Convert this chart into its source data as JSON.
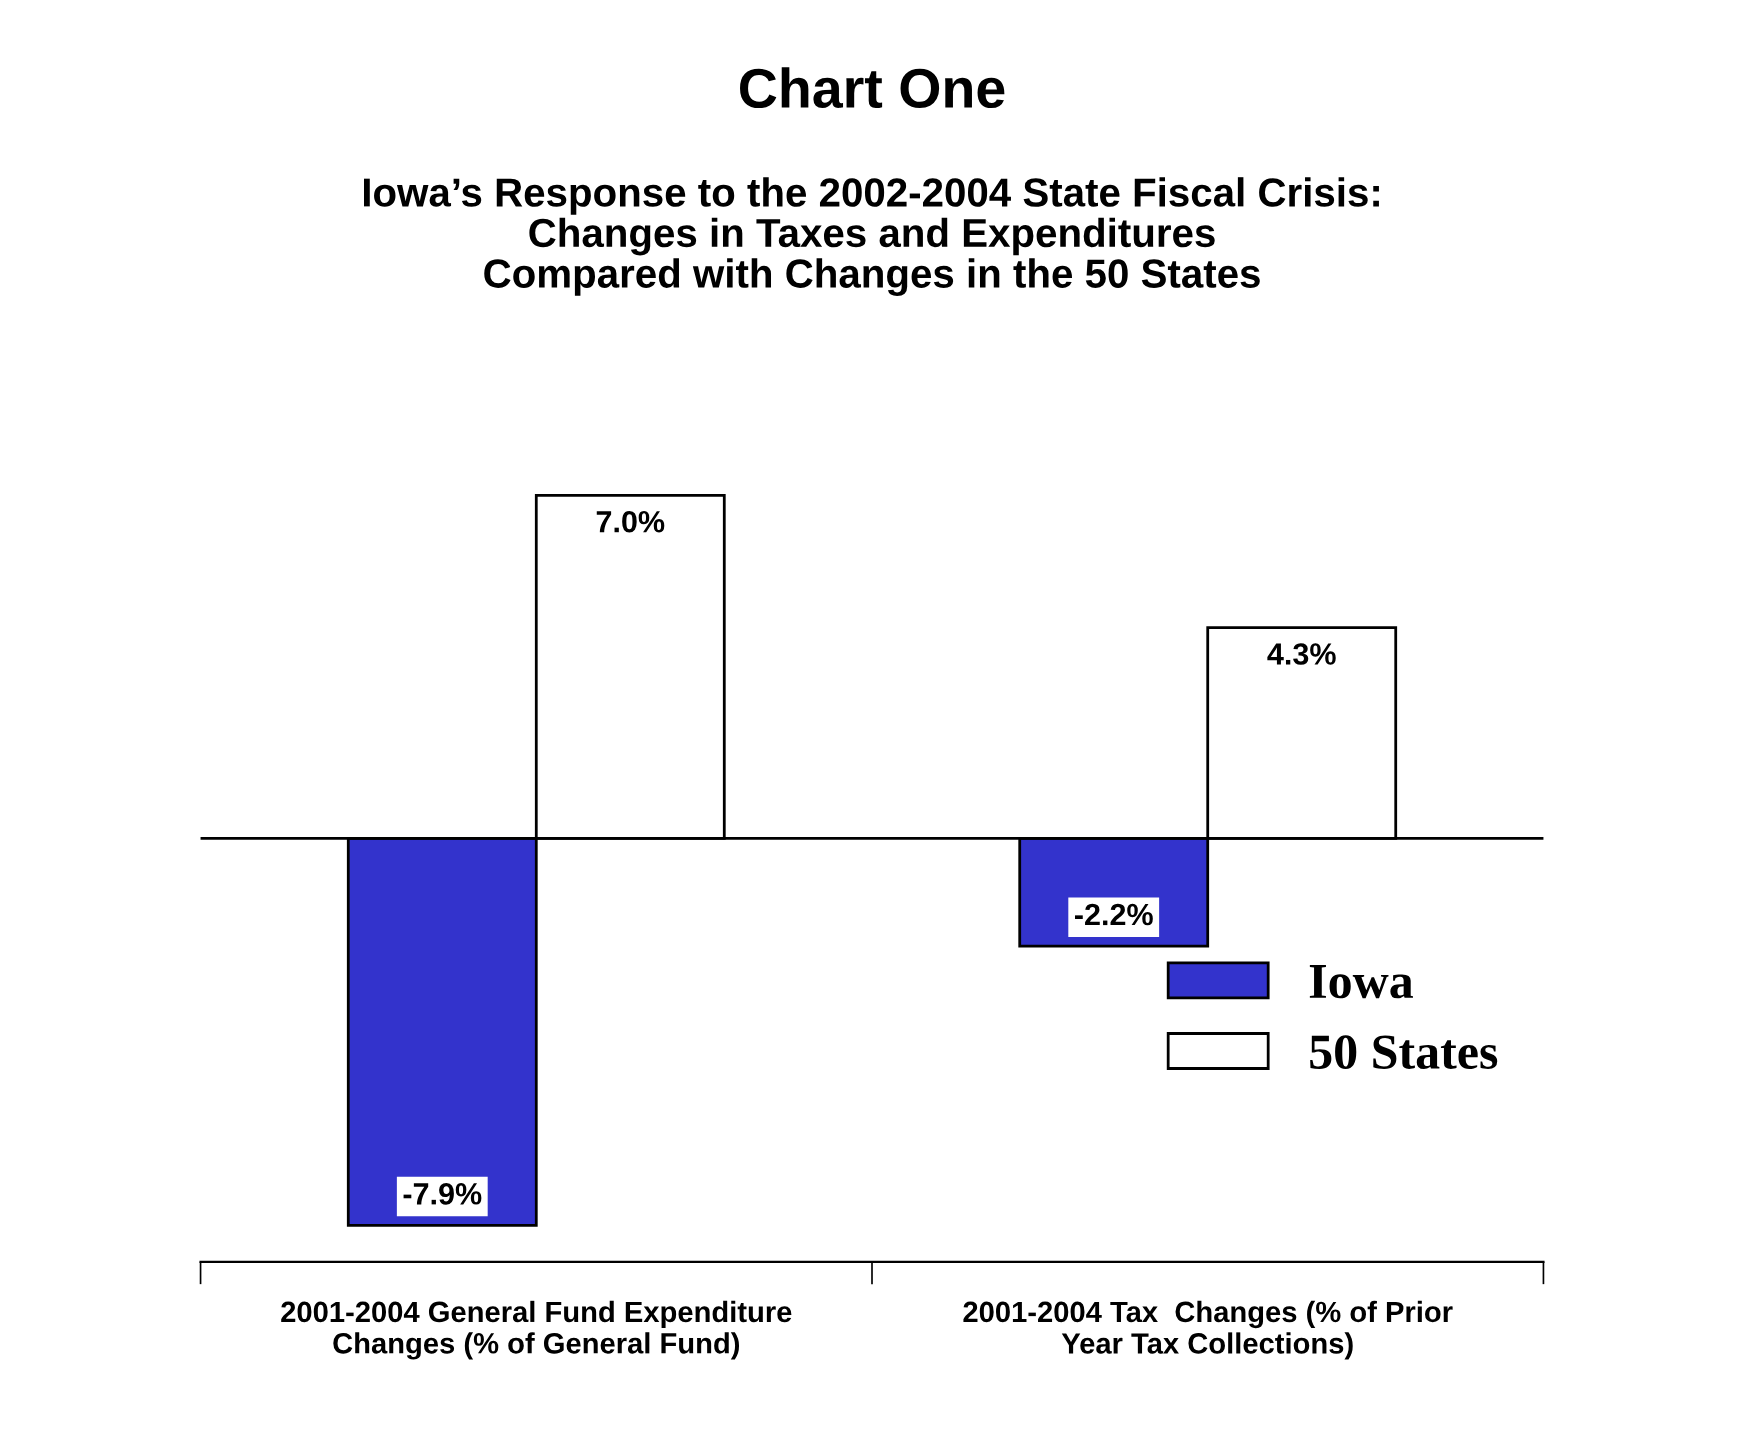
{
  "chart_data": {
    "type": "bar",
    "title": "Chart One",
    "subtitle": "Iowa’s Response to the 2002-2004 State Fiscal Crisis:\nChanges in Taxes and Expenditures\nCompared with Changes in the 50 States",
    "categories": [
      "2001-2004 General Fund Expenditure\nChanges (% of General Fund)",
      "2001-2004 Tax  Changes (% of Prior\nYear Tax Collections)"
    ],
    "series": [
      {
        "name": "Iowa",
        "color": "#3333cc",
        "values": [
          -7.9,
          -2.2
        ],
        "value_labels": [
          "-7.9%",
          "-2.2%"
        ]
      },
      {
        "name": "50 States",
        "color": "#ffffff",
        "values": [
          7.0,
          4.3
        ],
        "value_labels": [
          "7.0%",
          "4.3%"
        ]
      }
    ],
    "legend": "right"
  }
}
